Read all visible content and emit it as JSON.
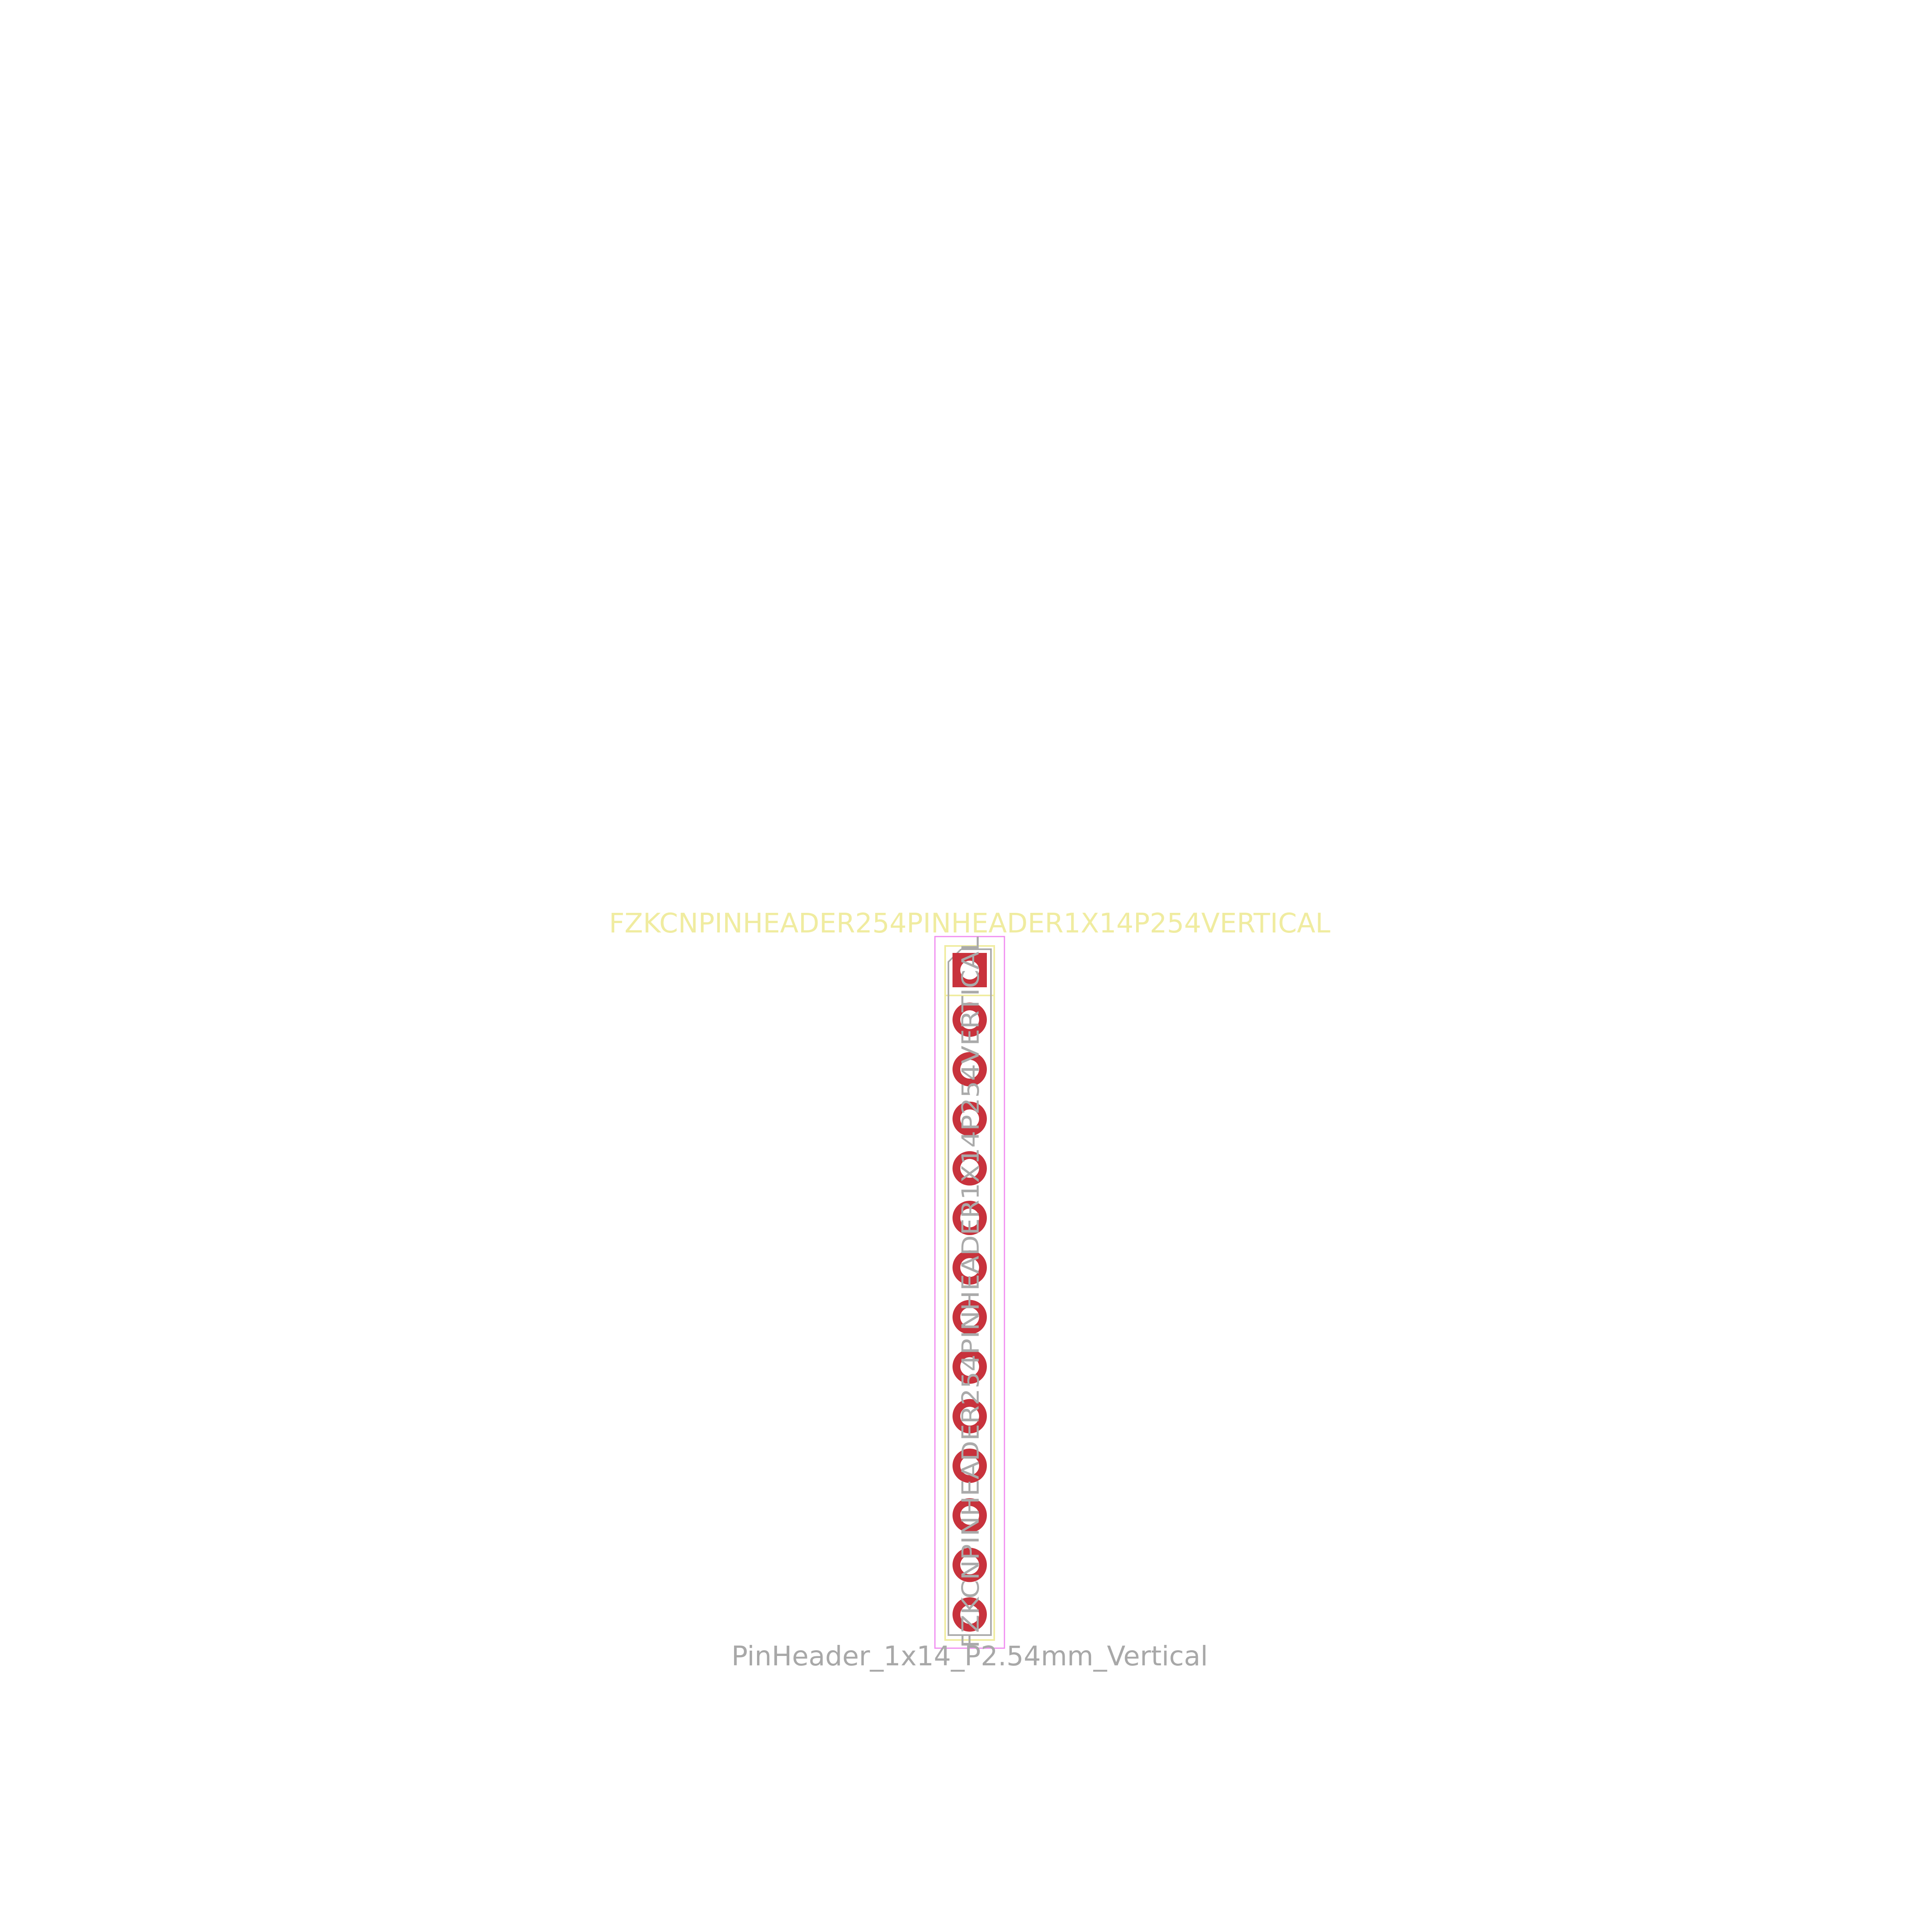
{
  "footprint": {
    "reference": "FZKCNPINHEADER254PINHEADER1X14P254VERTICAL",
    "value": "PinHeader_1x14_P2.54mm_Vertical",
    "fab_reference": "FZKCNPINHEADER254PINHEADER1X14P254VERTICAL",
    "pin_count": 14,
    "pitch_mm": 2.54,
    "first_pad_shape": "square",
    "other_pad_shape": "circle"
  },
  "colors": {
    "background": "#ffffff",
    "pad": "#c8323c",
    "drill": "#ffffff",
    "silkscreen": "#f0eca0",
    "courtyard": "#f08cf0",
    "fabrication": "#aaaaaa",
    "value_text": "#a8a8a8"
  }
}
